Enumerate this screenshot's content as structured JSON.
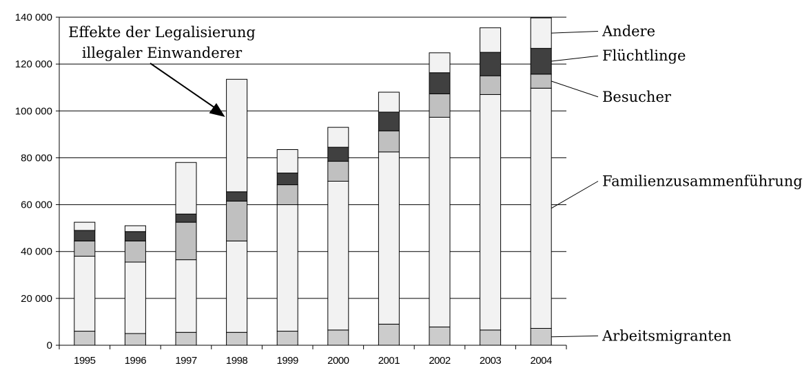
{
  "chart_data": {
    "type": "bar",
    "stacked": true,
    "categories": [
      "1995",
      "1996",
      "1997",
      "1998",
      "1999",
      "2000",
      "2001",
      "2002",
      "2003",
      "2004"
    ],
    "series": [
      {
        "name": "Arbeitsmigranten",
        "color": "#cccccc",
        "values": [
          6000,
          5000,
          5500,
          5500,
          6000,
          6500,
          9000,
          7800,
          6500,
          7200
        ]
      },
      {
        "name": "Familienzusammenführung",
        "color": "#f2f2f2",
        "values": [
          32000,
          30500,
          31000,
          39000,
          54000,
          63500,
          73500,
          89500,
          100500,
          102500
        ]
      },
      {
        "name": "Besucher",
        "color": "#c0c0c0",
        "values": [
          6500,
          9000,
          16000,
          17000,
          8500,
          8500,
          9000,
          10000,
          8000,
          6000
        ]
      },
      {
        "name": "Flüchtlinge",
        "color": "#404040",
        "values": [
          4500,
          4000,
          3500,
          4000,
          5000,
          6000,
          8000,
          9000,
          10000,
          11000
        ]
      },
      {
        "name": "Andere",
        "color": "#f2f2f2",
        "values": [
          3500,
          2500,
          22000,
          48000,
          10000,
          8500,
          8500,
          8500,
          10500,
          13000
        ]
      }
    ],
    "yticks": [
      "0",
      "20 000",
      "40 000",
      "60 000",
      "80 000",
      "100 000",
      "120 000",
      "140 000"
    ],
    "ylim": [
      0,
      140000
    ],
    "grid": true,
    "legend_position": "right",
    "annotation": {
      "line1": "Effekte der Legalisierung",
      "line2": "illegaler Einwanderer",
      "target_category": "1998"
    }
  }
}
